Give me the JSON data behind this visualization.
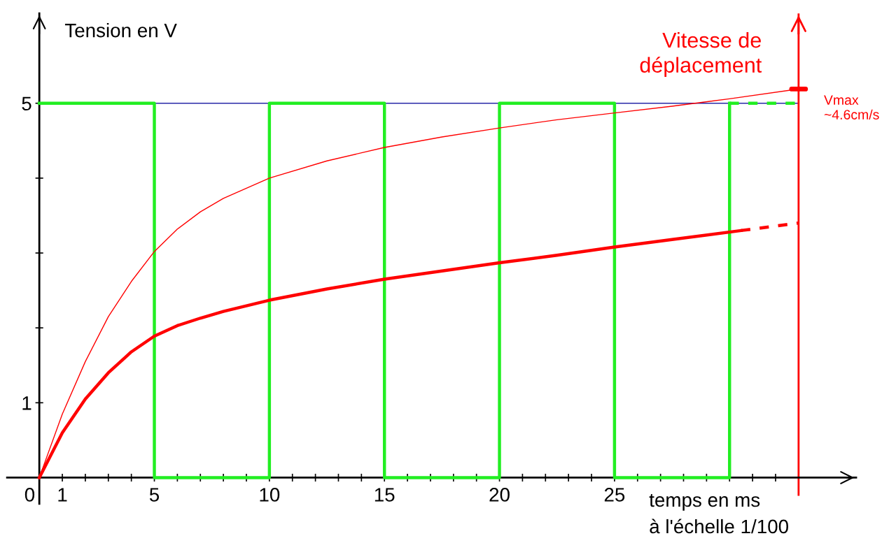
{
  "chart_data": {
    "type": "line",
    "ylabel": "Tension en V",
    "xlabel": "temps en ms\nà l'échelle 1/100",
    "xlim": [
      -1.4,
      35.5
    ],
    "ylim": [
      -0.35,
      6.2
    ],
    "xticks": [
      0,
      {
        "value": 1,
        "label": "1"
      },
      {
        "value": 2,
        "label": null
      },
      {
        "value": 3,
        "label": null
      },
      {
        "value": 4,
        "label": null
      },
      {
        "value": 5,
        "label": "5"
      },
      {
        "value": 6,
        "label": null
      },
      {
        "value": 7,
        "label": null
      },
      {
        "value": 8,
        "label": null
      },
      {
        "value": 9,
        "label": null
      },
      {
        "value": 10,
        "label": "10"
      },
      {
        "value": 11,
        "label": null
      },
      {
        "value": 12,
        "label": null
      },
      {
        "value": 13,
        "label": null
      },
      {
        "value": 14,
        "label": null
      },
      {
        "value": 15,
        "label": "15"
      },
      {
        "value": 16,
        "label": null
      },
      {
        "value": 17,
        "label": null
      },
      {
        "value": 18,
        "label": null
      },
      {
        "value": 19,
        "label": null
      },
      {
        "value": 20,
        "label": "20"
      },
      {
        "value": 21,
        "label": null
      },
      {
        "value": 22,
        "label": null
      },
      {
        "value": 23,
        "label": null
      },
      {
        "value": 24,
        "label": null
      },
      {
        "value": 25,
        "label": "25"
      },
      {
        "value": 26,
        "label": null
      },
      {
        "value": 27,
        "label": null
      },
      {
        "value": 28,
        "label": null
      },
      {
        "value": 29,
        "label": null
      },
      {
        "value": 30,
        "label": null
      },
      {
        "value": 31,
        "label": null
      },
      {
        "value": 32,
        "label": null
      }
    ],
    "yticks": [
      1,
      {
        "value": 2,
        "label": null
      },
      {
        "value": 3,
        "label": null
      },
      {
        "value": 4,
        "label": null
      },
      5
    ],
    "grid": false,
    "marker": "none",
    "series": [
      {
        "color": "#22ee22",
        "line_style": "solid",
        "x": [
          0,
          5,
          5,
          10,
          10,
          15,
          15,
          20,
          20,
          25,
          25,
          30,
          30
        ],
        "values": [
          5,
          5,
          0,
          0,
          5,
          5,
          0,
          0,
          5,
          5,
          0,
          0,
          5
        ]
      },
      {
        "color": "#22ee22",
        "line_style": "dashed",
        "x": [
          30,
          33
        ],
        "values": [
          5,
          5
        ]
      },
      {
        "color": "#ff0000",
        "line_style": "solid",
        "x": [
          0,
          1,
          2,
          3,
          4,
          5,
          6,
          7,
          8,
          10,
          12.5,
          15,
          17.5,
          20,
          22.5,
          25,
          27.5,
          30,
          33
        ],
        "values": [
          0,
          0.85,
          1.55,
          2.15,
          2.62,
          3.02,
          3.32,
          3.55,
          3.73,
          4.0,
          4.23,
          4.41,
          4.55,
          4.67,
          4.78,
          4.87,
          4.96,
          5.06,
          5.19
        ]
      },
      {
        "color": "#ff0000",
        "line_style": "solid",
        "x": [
          0,
          1,
          2,
          3,
          4,
          5,
          6,
          7,
          8,
          10,
          12.5,
          15,
          17.5,
          20,
          22.5,
          25,
          27.5,
          30.5
        ],
        "values": [
          0,
          0.6,
          1.05,
          1.4,
          1.68,
          1.89,
          2.03,
          2.13,
          2.22,
          2.37,
          2.52,
          2.65,
          2.76,
          2.87,
          2.97,
          3.08,
          3.18,
          3.3
        ]
      },
      {
        "color": "#ff0000",
        "line_style": "dashed",
        "x": [
          30.5,
          33
        ],
        "values": [
          3.3,
          3.4
        ]
      }
    ],
    "ref_lines": [
      {
        "axis": "y",
        "value": 5,
        "color": "#2828a8"
      },
      {
        "axis": "x",
        "value": 33,
        "label": "Vitesse de\ndéplacement",
        "color": "#ff0000"
      }
    ],
    "annotations": [
      {
        "text": "Vmax\n~4.6cm/s",
        "x": 33,
        "y": 5.19
      }
    ]
  }
}
